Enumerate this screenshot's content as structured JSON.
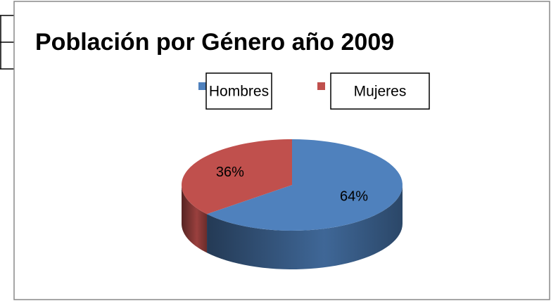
{
  "chart_data": {
    "type": "pie",
    "title": "Población por Género año 2009",
    "categories": [
      "Hombres",
      "Mujeres"
    ],
    "values": [
      64,
      36
    ],
    "value_labels": [
      "64%",
      "36%"
    ],
    "colors": [
      "#4f81bd",
      "#c0504d"
    ]
  }
}
